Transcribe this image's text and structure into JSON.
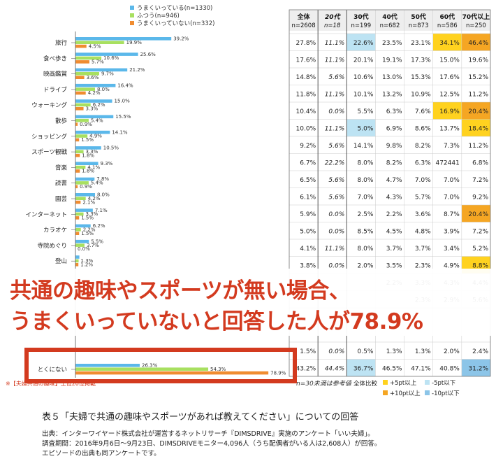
{
  "overlay": {
    "line1": "共通の趣味やスポーツが無い場合、",
    "line2": "うまくいっていないと回答した人が78.9%"
  },
  "caption": {
    "title": "表５「夫婦で共通の趣味やスポーツがあれば教えてください」についての回答",
    "source1": "出典：インターワイヤード株式会社が運営するネットリサーチ『DIMSDRIVE』実施のアンケート「いい夫婦」。",
    "source2": "調査期間：2016年9月6日～9月23日、DIMSDRIVEモニター4,096人（うち配偶者がいる人は2,608人）が回答。",
    "source3": "エピソードの出典も同アンケートです。"
  },
  "chart_data": [
    {
      "type": "bar",
      "orientation": "horizontal",
      "legend_position": "top",
      "series": [
        {
          "name": "うまくいっている(n=1330)",
          "color": "#5bb8ea"
        },
        {
          "name": "ふつう(n=946)",
          "color": "#a8e060"
        },
        {
          "name": "うまくいっていない(n=332)",
          "color": "#f08c30"
        }
      ],
      "rows": [
        {
          "label": "旅行",
          "values": [
            39.2,
            19.9,
            4.5
          ],
          "value_labels": [
            "39.2%",
            "19.9%",
            "4.5%"
          ]
        },
        {
          "label": "食べ歩き",
          "values": [
            25.6,
            10.6,
            5.7
          ],
          "value_labels": [
            "25.6%",
            "10.6%",
            "5.7%"
          ]
        },
        {
          "label": "映画鑑賞",
          "values": [
            21.2,
            9.7,
            3.6
          ],
          "value_labels": [
            "21.2%",
            "9.7%",
            "3.6%"
          ]
        },
        {
          "label": "ドライブ",
          "values": [
            16.4,
            8.0,
            4.2
          ],
          "value_labels": [
            "16.4%",
            "8.0%",
            "4.2%"
          ]
        },
        {
          "label": "ウォーキング",
          "values": [
            15.0,
            6.2,
            3.3
          ],
          "value_labels": [
            "15.0%",
            "6.2%",
            "3.3%"
          ]
        },
        {
          "label": "散歩",
          "values": [
            15.5,
            5.4,
            0.9
          ],
          "value_labels": [
            "15.5%",
            "5.4%",
            "0.9%"
          ]
        },
        {
          "label": "ショッピング",
          "values": [
            14.1,
            4.9,
            1.5
          ],
          "value_labels": [
            "14.1%",
            "4.9%",
            "1.5%"
          ]
        },
        {
          "label": "スポーツ観戦",
          "values": [
            10.5,
            3.3,
            1.8
          ],
          "value_labels": [
            "10.5%",
            "3.3%",
            "1.8%"
          ]
        },
        {
          "label": "音楽",
          "values": [
            9.3,
            4.1,
            1.8
          ],
          "value_labels": [
            "9.3%",
            "4.1%",
            "1.8%"
          ]
        },
        {
          "label": "読書",
          "values": [
            7.8,
            5.4,
            0.9
          ],
          "value_labels": [
            "7.8%",
            "5.4%",
            "0.9%"
          ]
        },
        {
          "label": "園芸",
          "values": [
            8.0,
            4.2,
            2.1
          ],
          "value_labels": [
            "8.0%",
            "4.2%",
            "2.1%"
          ]
        },
        {
          "label": "インターネット",
          "values": [
            7.1,
            3.3,
            1.5
          ],
          "value_labels": [
            "7.1%",
            "3.3%",
            "1.5%"
          ]
        },
        {
          "label": "カラオケ",
          "values": [
            6.2,
            2.2,
            1.5
          ],
          "value_labels": [
            "6.2%",
            "2.2%",
            "1.5%"
          ]
        },
        {
          "label": "寺院めぐり",
          "values": [
            5.5,
            3.7,
            0.0
          ],
          "value_labels": [
            "5.5%",
            "3.7%",
            "0.0%"
          ]
        },
        {
          "label": "登山",
          "values": [
            1.6,
            1.3,
            1.2
          ],
          "value_labels": [
            "",
            "1.3%",
            "1.2%"
          ]
        },
        {
          "label": "とくにない",
          "values": [
            26.3,
            54.3,
            78.9
          ],
          "value_labels": [
            "26.3%",
            "54.3%",
            "78.9%"
          ]
        }
      ],
      "footnote": "※【夫婦共通の趣味】上位20位掲載"
    },
    {
      "type": "table",
      "columns": [
        {
          "top": "全体",
          "bottom": "n=2608"
        },
        {
          "top": "20代",
          "bottom": "n=18"
        },
        {
          "top": "30代",
          "bottom": "n=199"
        },
        {
          "top": "40代",
          "bottom": "n=682"
        },
        {
          "top": "50代",
          "bottom": "n=873"
        },
        {
          "top": "60代",
          "bottom": "n=586"
        },
        {
          "top": "70代以上",
          "bottom": "n=250"
        }
      ],
      "rows": [
        [
          "27.8%",
          "11.1%",
          "22.6%",
          "23.5%",
          "23.1%",
          "34.1%",
          "46.4%"
        ],
        [
          "17.6%",
          "11.1%",
          "20.1%",
          "19.1%",
          "17.3%",
          "15.0%",
          "19.6%"
        ],
        [
          "14.8%",
          "5.6%",
          "10.6%",
          "13.0%",
          "15.3%",
          "17.6%",
          "15.2%"
        ],
        [
          "11.8%",
          "11.1%",
          "10.1%",
          "13.2%",
          "10.9%",
          "12.5%",
          "11.2%"
        ],
        [
          "10.4%",
          "0.0%",
          "5.5%",
          "6.3%",
          "7.6%",
          "16.9%",
          "20.4%"
        ],
        [
          "10.0%",
          "11.1%",
          "5.0%",
          "6.9%",
          "8.6%",
          "13.7%",
          "18.4%"
        ],
        [
          "9.2%",
          "5.6%",
          "14.1%",
          "9.8%",
          "8.2%",
          "7.3%",
          "11.2%"
        ],
        [
          "6.7%",
          "22.2%",
          "8.0%",
          "8.2%",
          "6.3%",
          "472441",
          "6.8%"
        ],
        [
          "6.5%",
          "5.6%",
          "8.0%",
          "4.7%",
          "7.0%",
          "7.0%",
          "7.2%"
        ],
        [
          "6.1%",
          "5.6%",
          "7.0%",
          "4.3%",
          "5.7%",
          "7.0%",
          "9.2%"
        ],
        [
          "5.9%",
          "0.0%",
          "2.5%",
          "2.2%",
          "3.6%",
          "8.7%",
          "20.4%"
        ],
        [
          "5.0%",
          "0.0%",
          "8.5%",
          "4.5%",
          "4.8%",
          "3.9%",
          "7.2%"
        ],
        [
          "4.1%",
          "11.1%",
          "8.0%",
          "3.7%",
          "3.7%",
          "3.4%",
          "5.2%"
        ],
        [
          "3.8%",
          "0.0%",
          "2.0%",
          "3.5%",
          "2.3%",
          "4.9%",
          "8.8%"
        ],
        [
          "",
          "",
          "",
          "2.2%",
          "3.3%",
          "4.3%",
          "4.4%"
        ],
        [
          "",
          "",
          "",
          "",
          "2.3%",
          "2.9%",
          "5.6%"
        ],
        [
          "",
          "",
          "",
          "",
          "",
          "",
          ""
        ],
        [
          "",
          "",
          "",
          "",
          "",
          "",
          ""
        ],
        [
          "1.5%",
          "0.0%",
          "0.5%",
          "1.3%",
          "1.3%",
          "2.0%",
          "2.4%"
        ],
        [
          "43.2%",
          "44.4%",
          "36.7%",
          "46.5%",
          "47.1%",
          "40.8%",
          "31.2%"
        ]
      ],
      "highlights": [
        {
          "row": 0,
          "col": 2,
          "kind": "-5pt"
        },
        {
          "row": 0,
          "col": 5,
          "kind": "+5pt"
        },
        {
          "row": 0,
          "col": 6,
          "kind": "+10pt"
        },
        {
          "row": 4,
          "col": 5,
          "kind": "+5pt"
        },
        {
          "row": 4,
          "col": 6,
          "kind": "+10pt"
        },
        {
          "row": 5,
          "col": 2,
          "kind": "-5pt"
        },
        {
          "row": 5,
          "col": 6,
          "kind": "+5pt"
        },
        {
          "row": 10,
          "col": 6,
          "kind": "+10pt"
        },
        {
          "row": 13,
          "col": 6,
          "kind": "+5pt"
        },
        {
          "row": 19,
          "col": 2,
          "kind": "-5pt"
        },
        {
          "row": 19,
          "col": 6,
          "kind": "-10pt"
        }
      ],
      "note": "n=30未満は参考値",
      "legend_title": "全体比較",
      "legend": [
        {
          "label": "+5pt以上",
          "kind": "+5pt"
        },
        {
          "label": "-5pt以下",
          "kind": "-5pt"
        },
        {
          "label": "+10pt以上",
          "kind": "+10pt"
        },
        {
          "label": "-10pt以下",
          "kind": "-10pt"
        }
      ],
      "colors": {
        "+5pt": "#ffd21f",
        "+10pt": "#f5a623",
        "-5pt": "#bde3f3",
        "-10pt": "#8cc5e8"
      }
    }
  ],
  "colors": {
    "accent": "#d33a1f"
  }
}
